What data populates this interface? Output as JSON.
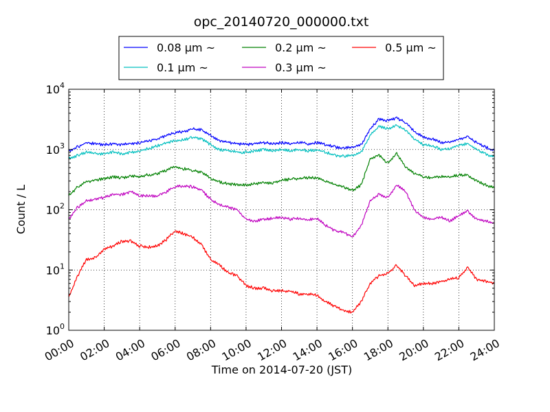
{
  "chart_data": {
    "type": "line",
    "title": "opc_20140720_000000.txt",
    "xlabel": "Time on 2014-07-20 (JST)",
    "ylabel": "Count / L",
    "yscale": "log",
    "xlim": [
      "00:00",
      "24:00"
    ],
    "ylim": [
      1,
      10000
    ],
    "grid": true,
    "legend_position": "top-center",
    "x_tick_labels": [
      "00:00",
      "02:00",
      "04:00",
      "06:00",
      "08:00",
      "10:00",
      "12:00",
      "14:00",
      "16:00",
      "18:00",
      "20:00",
      "22:00",
      "24:00"
    ],
    "y_tick_labels": [
      {
        "base": "10",
        "exp": "0"
      },
      {
        "base": "10",
        "exp": "1"
      },
      {
        "base": "10",
        "exp": "2"
      },
      {
        "base": "10",
        "exp": "3"
      },
      {
        "base": "10",
        "exp": "4"
      }
    ],
    "x": [
      "00:00",
      "00:30",
      "01:00",
      "01:30",
      "02:00",
      "02:30",
      "03:00",
      "03:30",
      "04:00",
      "04:30",
      "05:00",
      "05:30",
      "06:00",
      "06:30",
      "07:00",
      "07:30",
      "08:00",
      "08:30",
      "09:00",
      "09:30",
      "10:00",
      "10:30",
      "11:00",
      "11:30",
      "12:00",
      "12:30",
      "13:00",
      "13:30",
      "14:00",
      "14:30",
      "15:00",
      "15:30",
      "16:00",
      "16:30",
      "17:00",
      "17:30",
      "18:00",
      "18:30",
      "19:00",
      "19:30",
      "20:00",
      "20:30",
      "21:00",
      "21:30",
      "22:00",
      "22:30",
      "23:00",
      "23:30",
      "24:00"
    ],
    "series": [
      {
        "name": "0.08 μm ~",
        "color": "#0000ff",
        "values": [
          950,
          1100,
          1300,
          1250,
          1200,
          1250,
          1200,
          1250,
          1300,
          1400,
          1500,
          1700,
          1900,
          2000,
          2200,
          2100,
          1700,
          1400,
          1300,
          1250,
          1200,
          1250,
          1300,
          1250,
          1300,
          1250,
          1300,
          1250,
          1300,
          1200,
          1100,
          1050,
          1100,
          1200,
          2200,
          3200,
          3000,
          3300,
          2800,
          2000,
          1600,
          1500,
          1300,
          1350,
          1500,
          1600,
          1300,
          1100,
          950
        ]
      },
      {
        "name": "0.1 μm ~",
        "color": "#00bfbf",
        "values": [
          700,
          800,
          900,
          850,
          850,
          900,
          850,
          900,
          950,
          1050,
          1150,
          1300,
          1400,
          1450,
          1600,
          1500,
          1200,
          1000,
          950,
          900,
          900,
          950,
          1000,
          950,
          1000,
          950,
          1000,
          950,
          1000,
          900,
          800,
          780,
          800,
          900,
          1700,
          2400,
          2200,
          2500,
          2100,
          1500,
          1200,
          1150,
          1000,
          1050,
          1200,
          1250,
          1000,
          850,
          750
        ]
      },
      {
        "name": "0.2 μm ~",
        "color": "#008000",
        "values": [
          170,
          240,
          290,
          310,
          330,
          350,
          340,
          360,
          360,
          380,
          400,
          450,
          520,
          480,
          450,
          420,
          330,
          290,
          270,
          260,
          260,
          270,
          280,
          280,
          310,
          320,
          330,
          340,
          340,
          300,
          260,
          240,
          210,
          260,
          700,
          800,
          600,
          850,
          500,
          400,
          350,
          340,
          360,
          350,
          380,
          370,
          300,
          260,
          230
        ]
      },
      {
        "name": "0.3 μm ~",
        "color": "#bf00bf",
        "values": [
          70,
          110,
          140,
          150,
          160,
          180,
          180,
          200,
          170,
          170,
          170,
          200,
          240,
          250,
          240,
          210,
          150,
          120,
          110,
          100,
          70,
          65,
          70,
          72,
          75,
          70,
          72,
          68,
          72,
          55,
          45,
          42,
          35,
          55,
          140,
          180,
          160,
          260,
          200,
          100,
          75,
          70,
          75,
          65,
          80,
          95,
          70,
          65,
          60
        ]
      },
      {
        "name": "0.5 μm ~",
        "color": "#ff0000",
        "values": [
          3.5,
          8,
          15,
          16,
          22,
          25,
          30,
          30,
          25,
          24,
          25,
          32,
          45,
          40,
          35,
          26,
          15,
          12,
          9,
          8,
          5.5,
          5,
          5,
          4.5,
          4.5,
          4.5,
          4,
          4,
          3.8,
          3,
          2.5,
          2.1,
          2.0,
          3,
          6,
          8,
          9,
          12,
          8,
          5.5,
          6,
          6,
          6.5,
          7,
          7.5,
          11,
          7,
          6.5,
          6
        ]
      }
    ]
  }
}
